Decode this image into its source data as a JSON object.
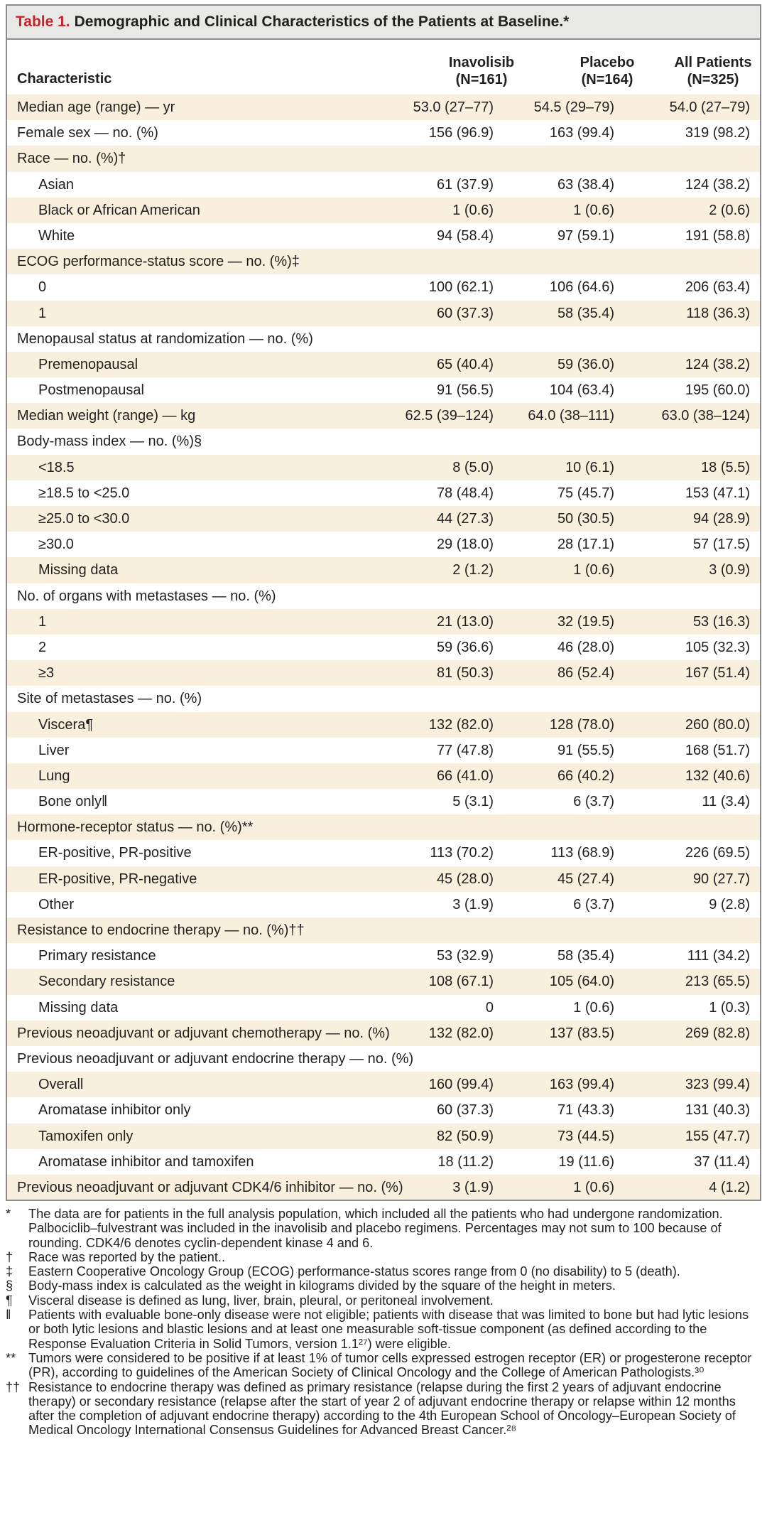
{
  "table": {
    "title_label": "Table 1.",
    "title_text": "Demographic and Clinical Characteristics of the Patients at Baseline.*",
    "header": {
      "characteristic": "Characteristic",
      "col1_name": "Inavolisib",
      "col1_n": "(N=161)",
      "col2_name": "Placebo",
      "col2_n": "(N=164)",
      "col3_name": "All Patients",
      "col3_n": "(N=325)"
    },
    "rows": [
      {
        "label": "Median age (range) — yr",
        "v1": "53.0 (27–77)",
        "v2": "54.5 (29–79)",
        "v3": "54.0 (27–79)"
      },
      {
        "label": "Female sex — no. (%)",
        "v1": "156 (96.9)",
        "v2": "163 (99.4)",
        "v3": "319 (98.2)"
      },
      {
        "label": "Race — no. (%)†",
        "v1": "",
        "v2": "",
        "v3": ""
      },
      {
        "label": "Asian",
        "v1": "61 (37.9)",
        "v2": "63 (38.4)",
        "v3": "124 (38.2)"
      },
      {
        "label": "Black or African American",
        "v1": "1 (0.6)",
        "v2": "1 (0.6)",
        "v3": "2 (0.6)"
      },
      {
        "label": "White",
        "v1": "94 (58.4)",
        "v2": "97 (59.1)",
        "v3": "191 (58.8)"
      },
      {
        "label": "ECOG performance-status score — no. (%)‡",
        "v1": "",
        "v2": "",
        "v3": ""
      },
      {
        "label": "0",
        "v1": "100 (62.1)",
        "v2": "106 (64.6)",
        "v3": "206 (63.4)"
      },
      {
        "label": "1",
        "v1": "60 (37.3)",
        "v2": "58 (35.4)",
        "v3": "118 (36.3)"
      },
      {
        "label": "Menopausal status at randomization — no. (%)",
        "v1": "",
        "v2": "",
        "v3": ""
      },
      {
        "label": "Premenopausal",
        "v1": "65 (40.4)",
        "v2": "59 (36.0)",
        "v3": "124 (38.2)"
      },
      {
        "label": "Postmenopausal",
        "v1": "91 (56.5)",
        "v2": "104 (63.4)",
        "v3": "195 (60.0)"
      },
      {
        "label": "Median weight (range) — kg",
        "v1": "62.5 (39–124)",
        "v2": "64.0 (38–111)",
        "v3": "63.0 (38–124)"
      },
      {
        "label": "Body-mass index — no. (%)§",
        "v1": "",
        "v2": "",
        "v3": ""
      },
      {
        "label": "<18.5",
        "v1": "8 (5.0)",
        "v2": "10 (6.1)",
        "v3": "18 (5.5)"
      },
      {
        "label": "≥18.5 to <25.0",
        "v1": "78 (48.4)",
        "v2": "75 (45.7)",
        "v3": "153 (47.1)"
      },
      {
        "label": "≥25.0 to <30.0",
        "v1": "44 (27.3)",
        "v2": "50 (30.5)",
        "v3": "94 (28.9)"
      },
      {
        "label": "≥30.0",
        "v1": "29 (18.0)",
        "v2": "28 (17.1)",
        "v3": "57 (17.5)"
      },
      {
        "label": "Missing data",
        "v1": "2 (1.2)",
        "v2": "1 (0.6)",
        "v3": "3 (0.9)"
      },
      {
        "label": "No. of organs with metastases — no. (%)",
        "v1": "",
        "v2": "",
        "v3": ""
      },
      {
        "label": "1",
        "v1": "21 (13.0)",
        "v2": "32 (19.5)",
        "v3": "53 (16.3)"
      },
      {
        "label": "2",
        "v1": "59 (36.6)",
        "v2": "46 (28.0)",
        "v3": "105 (32.3)"
      },
      {
        "label": "≥3",
        "v1": "81 (50.3)",
        "v2": "86 (52.4)",
        "v3": "167 (51.4)"
      },
      {
        "label": "Site of metastases — no. (%)",
        "v1": "",
        "v2": "",
        "v3": ""
      },
      {
        "label": "Viscera¶",
        "v1": "132 (82.0)",
        "v2": "128 (78.0)",
        "v3": "260 (80.0)"
      },
      {
        "label": "Liver",
        "v1": "77 (47.8)",
        "v2": "91 (55.5)",
        "v3": "168 (51.7)"
      },
      {
        "label": "Lung",
        "v1": "66 (41.0)",
        "v2": "66 (40.2)",
        "v3": "132 (40.6)"
      },
      {
        "label": "Bone only‖",
        "v1": "5 (3.1)",
        "v2": "6 (3.7)",
        "v3": "11 (3.4)"
      },
      {
        "label": "Hormone-receptor status — no. (%)**",
        "v1": "",
        "v2": "",
        "v3": ""
      },
      {
        "label": "ER-positive, PR-positive",
        "v1": "113 (70.2)",
        "v2": "113 (68.9)",
        "v3": "226 (69.5)"
      },
      {
        "label": "ER-positive, PR-negative",
        "v1": "45 (28.0)",
        "v2": "45 (27.4)",
        "v3": "90 (27.7)"
      },
      {
        "label": "Other",
        "v1": "3 (1.9)",
        "v2": "6 (3.7)",
        "v3": "9 (2.8)"
      },
      {
        "label": "Resistance to endocrine therapy — no. (%)††",
        "v1": "",
        "v2": "",
        "v3": ""
      },
      {
        "label": "Primary resistance",
        "v1": "53 (32.9)",
        "v2": "58 (35.4)",
        "v3": "111 (34.2)"
      },
      {
        "label": "Secondary resistance",
        "v1": "108 (67.1)",
        "v2": "105 (64.0)",
        "v3": "213 (65.5)"
      },
      {
        "label": "Missing data",
        "v1": "0",
        "v2": "1 (0.6)",
        "v3": "1 (0.3)"
      },
      {
        "label": "Previous neoadjuvant or adjuvant chemotherapy — no. (%)",
        "v1": "132 (82.0)",
        "v2": "137 (83.5)",
        "v3": "269 (82.8)"
      },
      {
        "label": "Previous neoadjuvant or adjuvant endocrine therapy — no. (%)",
        "v1": "",
        "v2": "",
        "v3": ""
      },
      {
        "label": "Overall",
        "v1": "160 (99.4)",
        "v2": "163 (99.4)",
        "v3": "323 (99.4)"
      },
      {
        "label": "Aromatase inhibitor only",
        "v1": "60 (37.3)",
        "v2": "71 (43.3)",
        "v3": "131 (40.3)"
      },
      {
        "label": "Tamoxifen only",
        "v1": "82 (50.9)",
        "v2": "73 (44.5)",
        "v3": "155 (47.7)"
      },
      {
        "label": "Aromatase inhibitor and tamoxifen",
        "v1": "18 (11.2)",
        "v2": "19 (11.6)",
        "v3": "37 (11.4)"
      },
      {
        "label": "Previous neoadjuvant or adjuvant CDK4/6 inhibitor — no. (%)",
        "v1": "3 (1.9)",
        "v2": "1 (0.6)",
        "v3": "4 (1.2)"
      }
    ]
  },
  "footnotes": [
    {
      "symbol": "*",
      "text": "The data are for patients in the full analysis population, which included all the patients who had undergone randomization. Palbociclib–fulvestrant was included in the inavolisib and placebo regimens. Percentages may not sum to 100 because of rounding. CDK4/6 denotes cyclin-dependent kinase 4 and 6."
    },
    {
      "symbol": "†",
      "text": "Race was reported by the patient.."
    },
    {
      "symbol": "‡",
      "text": "Eastern Cooperative Oncology Group (ECOG) performance-status scores range from 0 (no disability) to 5 (death)."
    },
    {
      "symbol": "§",
      "text": "Body-mass index is calculated as the weight in kilograms divided by the square of the height in meters."
    },
    {
      "symbol": "¶",
      "text": "Visceral disease is defined as lung, liver, brain, pleural, or peritoneal involvement."
    },
    {
      "symbol": "‖",
      "text": "Patients with evaluable bone-only disease were not eligible; patients with disease that was limited to bone but had lytic lesions or both lytic lesions and blastic lesions and at least one measurable soft-tissue component (as defined according to the Response Evaluation Criteria in Solid Tumors, version 1.1²⁷) were eligible."
    },
    {
      "symbol": "**",
      "text": "Tumors were considered to be positive if at least 1% of tumor cells expressed estrogen receptor (ER) or progesterone receptor (PR), according to guidelines of the American Society of Clinical Oncology and the College of American Pathologists.³⁰"
    },
    {
      "symbol": "††",
      "text": "Resistance to endocrine therapy was defined as primary resistance (relapse during the first 2 years of adjuvant endocrine therapy) or secondary resistance (relapse after the start of year 2 of adjuvant endocrine therapy or relapse within 12 months after the completion of adjuvant endocrine therapy) according to the 4th European School of Oncology–European Society of Medical Oncology International Consensus Guidelines for Advanced Breast Cancer.²⁸"
    }
  ]
}
